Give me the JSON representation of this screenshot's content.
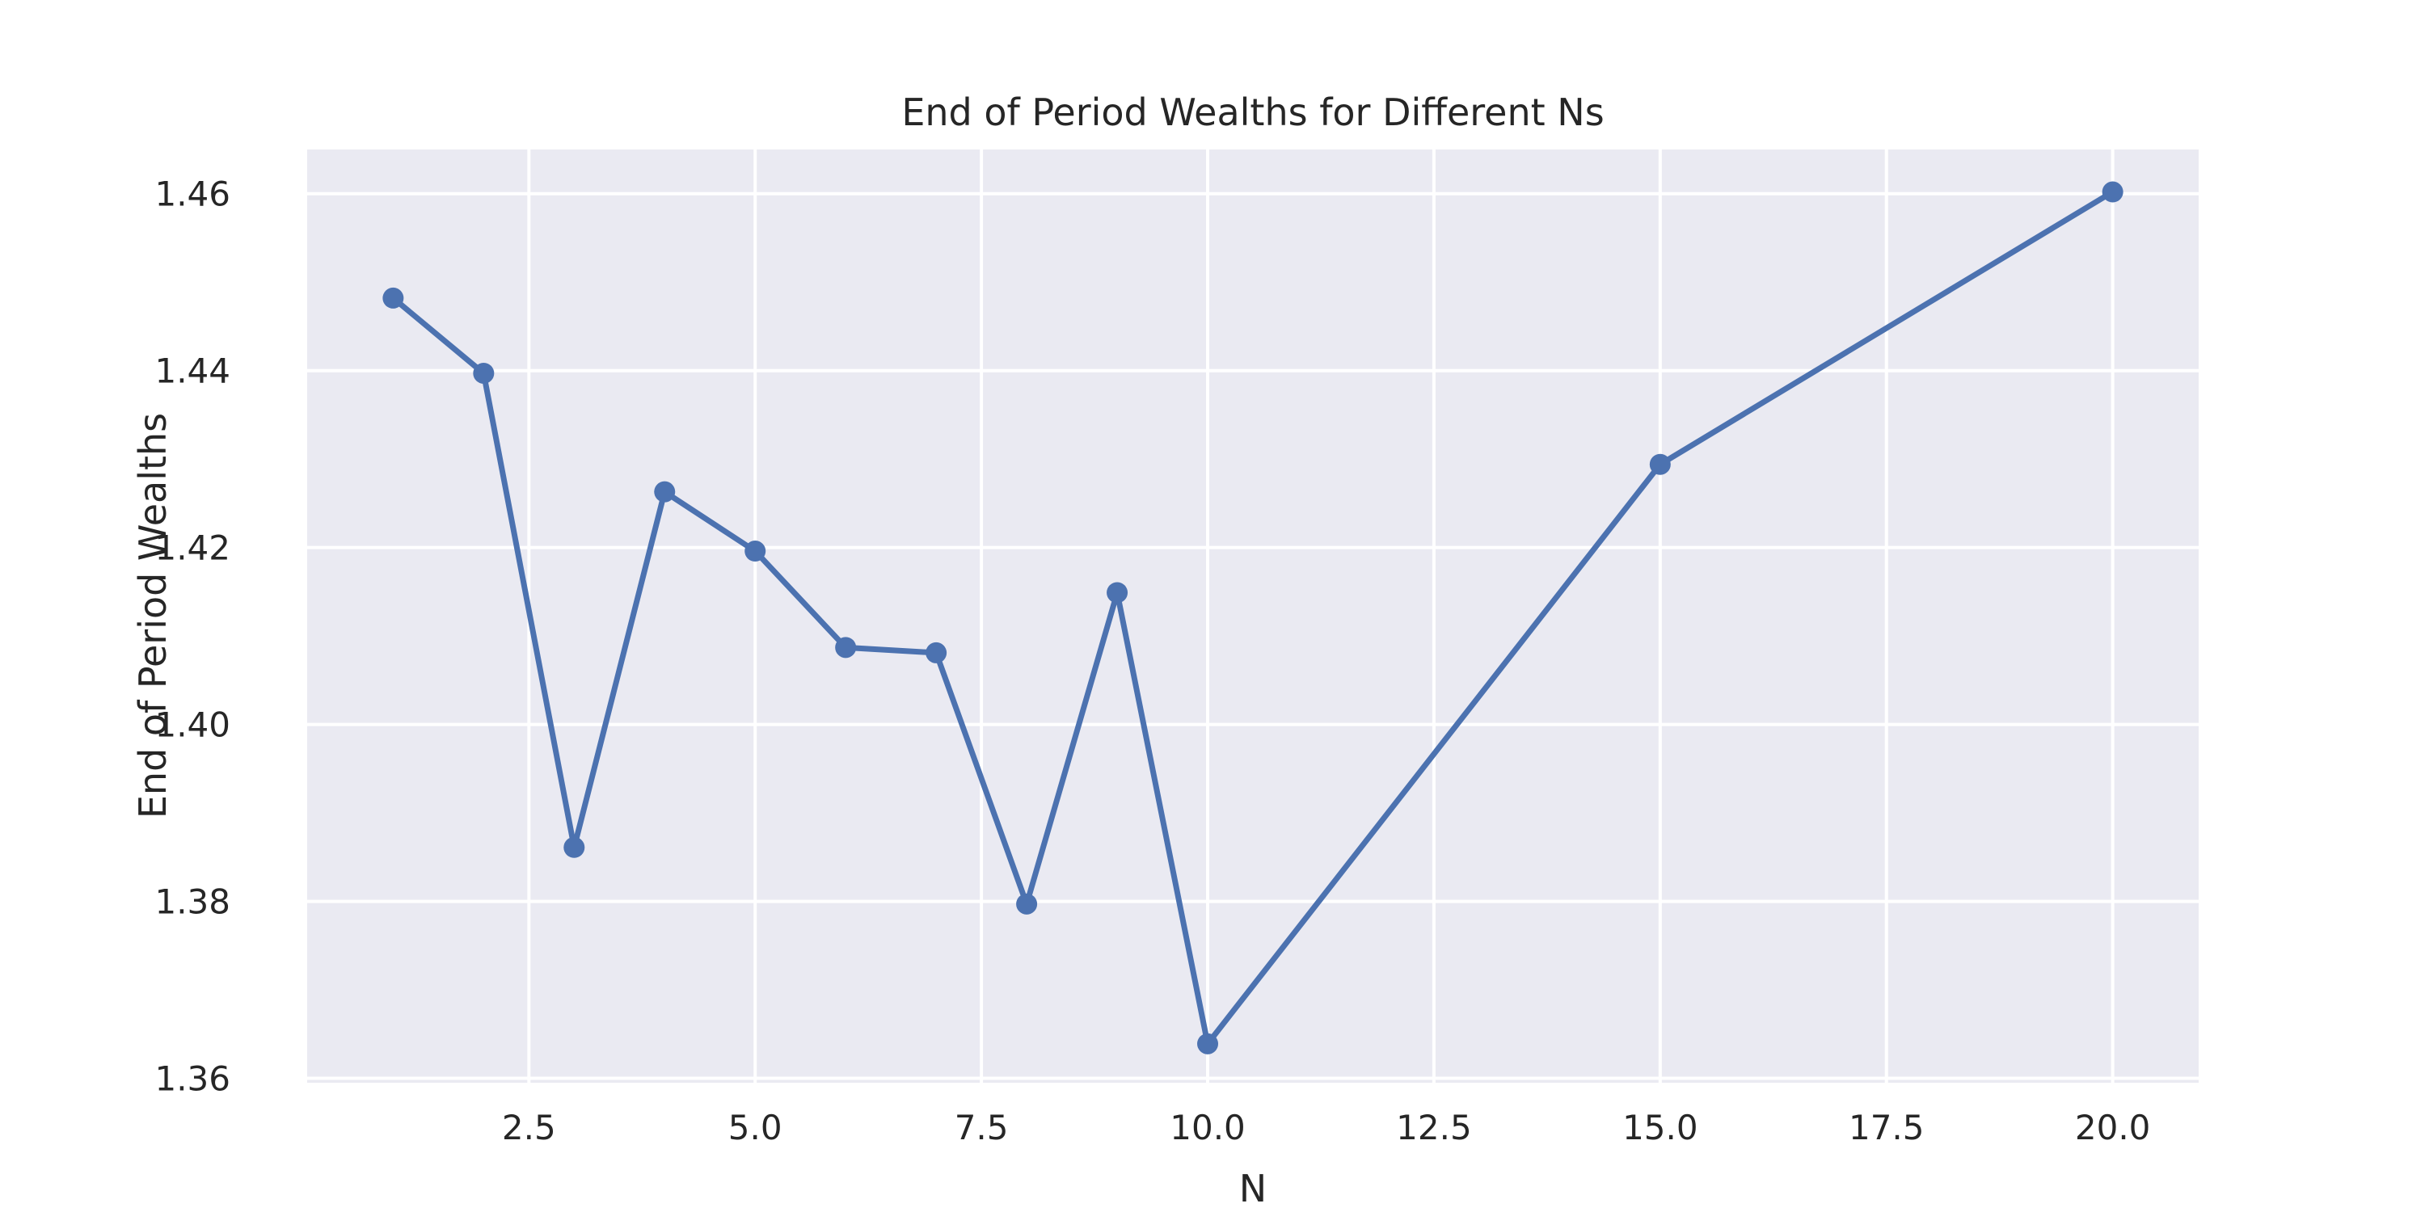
{
  "chart_data": {
    "type": "line",
    "title": "End of Period Wealths for Different Ns",
    "xlabel": "N",
    "ylabel": "End of Period Wealths",
    "xlim": [
      0.05,
      20.95
    ],
    "ylim": [
      1.3595,
      1.465
    ],
    "xticks": [
      2.5,
      5.0,
      7.5,
      10.0,
      12.5,
      15.0,
      17.5,
      20.0
    ],
    "xtick_labels": [
      "2.5",
      "5.0",
      "7.5",
      "10.0",
      "12.5",
      "15.0",
      "17.5",
      "20.0"
    ],
    "yticks": [
      1.36,
      1.38,
      1.4,
      1.42,
      1.44,
      1.46
    ],
    "ytick_labels": [
      "1.36",
      "1.38",
      "1.40",
      "1.42",
      "1.44",
      "1.46"
    ],
    "grid": true,
    "series": [
      {
        "color": "#4c72b0",
        "x": [
          1,
          2,
          3,
          4,
          5,
          6,
          7,
          8,
          9,
          10,
          15,
          20
        ],
        "y": [
          1.4482,
          1.4397,
          1.3861,
          1.4263,
          1.4196,
          1.4087,
          1.4081,
          1.3797,
          1.4149,
          1.3639,
          1.4294,
          1.4602
        ]
      }
    ],
    "colors": {
      "background": "#eaeaf2",
      "grid": "#ffffff",
      "text": "#262626"
    }
  }
}
